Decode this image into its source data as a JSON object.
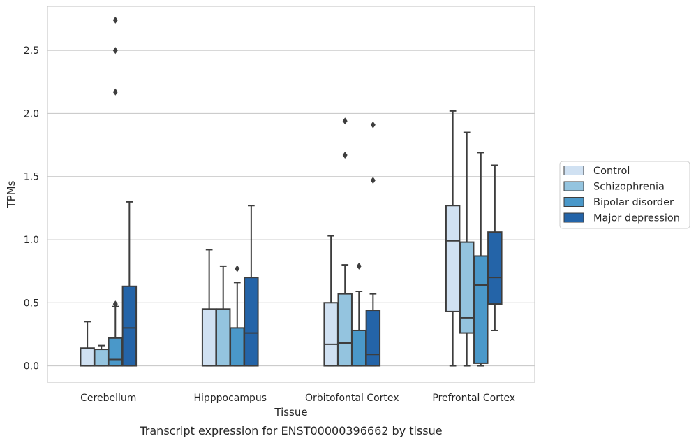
{
  "caption": "Transcript expression for ENST00000396662 by tissue",
  "chart_data": {
    "type": "box",
    "xlabel": "Tissue",
    "ylabel": "TPMs",
    "ylim": [
      -0.13,
      2.85
    ],
    "yticks": [
      "0.0",
      "0.5",
      "1.0",
      "1.5",
      "2.0",
      "2.5"
    ],
    "ytick_values": [
      0,
      0.5,
      1.0,
      1.5,
      2.0,
      2.5
    ],
    "grid": "horizontal",
    "legend_position": "right",
    "categories": [
      "Cerebellum",
      "Hipppocampus",
      "Orbitofontal Cortex",
      "Prefrontal Cortex"
    ],
    "series": [
      {
        "name": "Control",
        "color": "#d0e1f2",
        "boxes": [
          {
            "whisker_low": 0,
            "q1": 0,
            "median": 0,
            "q3": 0.14,
            "whisker_high": 0.35,
            "outliers": []
          },
          {
            "whisker_low": 0,
            "q1": 0,
            "median": 0,
            "q3": 0.45,
            "whisker_high": 0.92,
            "outliers": []
          },
          {
            "whisker_low": 0,
            "q1": 0,
            "median": 0.17,
            "q3": 0.5,
            "whisker_high": 1.03,
            "outliers": []
          },
          {
            "whisker_low": 0,
            "q1": 0.43,
            "median": 0.99,
            "q3": 1.27,
            "whisker_high": 2.02,
            "outliers": []
          }
        ]
      },
      {
        "name": "Schizophrenia",
        "color": "#94c4df",
        "boxes": [
          {
            "whisker_low": 0,
            "q1": 0,
            "median": 0,
            "q3": 0.13,
            "whisker_high": 0.16,
            "outliers": []
          },
          {
            "whisker_low": 0,
            "q1": 0,
            "median": 0,
            "q3": 0.45,
            "whisker_high": 0.79,
            "outliers": []
          },
          {
            "whisker_low": 0,
            "q1": 0,
            "median": 0.18,
            "q3": 0.57,
            "whisker_high": 0.8,
            "outliers": [
              1.67,
              1.94
            ]
          },
          {
            "whisker_low": 0,
            "q1": 0.26,
            "median": 0.38,
            "q3": 0.98,
            "whisker_high": 1.85,
            "outliers": []
          }
        ]
      },
      {
        "name": "Bipolar disorder",
        "color": "#4a98c9",
        "boxes": [
          {
            "whisker_low": 0,
            "q1": 0,
            "median": 0.05,
            "q3": 0.22,
            "whisker_high": 0.47,
            "outliers": [
              0.49,
              2.17,
              2.5,
              2.74
            ]
          },
          {
            "whisker_low": 0,
            "q1": 0,
            "median": 0,
            "q3": 0.3,
            "whisker_high": 0.66,
            "outliers": [
              0.77
            ]
          },
          {
            "whisker_low": 0,
            "q1": 0,
            "median": 0,
            "q3": 0.28,
            "whisker_high": 0.59,
            "outliers": [
              0.79
            ]
          },
          {
            "whisker_low": 0,
            "q1": 0.02,
            "median": 0.64,
            "q3": 0.87,
            "whisker_high": 1.69,
            "outliers": []
          }
        ]
      },
      {
        "name": "Major depression",
        "color": "#2464a8",
        "boxes": [
          {
            "whisker_low": 0,
            "q1": 0,
            "median": 0.3,
            "q3": 0.63,
            "whisker_high": 1.3,
            "outliers": []
          },
          {
            "whisker_low": 0,
            "q1": 0,
            "median": 0.26,
            "q3": 0.7,
            "whisker_high": 1.27,
            "outliers": []
          },
          {
            "whisker_low": 0,
            "q1": 0,
            "median": 0.09,
            "q3": 0.44,
            "whisker_high": 0.57,
            "outliers": [
              1.47,
              1.91
            ]
          },
          {
            "whisker_low": 0.28,
            "q1": 0.49,
            "median": 0.7,
            "q3": 1.06,
            "whisker_high": 1.59,
            "outliers": []
          }
        ]
      }
    ]
  }
}
